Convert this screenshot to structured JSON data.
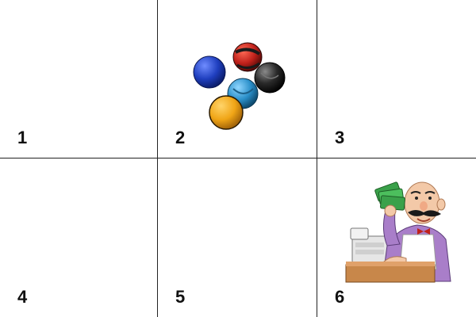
{
  "panels": [
    {
      "label": "1",
      "content": ""
    },
    {
      "label": "2",
      "content": "balls-icon"
    },
    {
      "label": "3",
      "content": ""
    },
    {
      "label": "4",
      "content": ""
    },
    {
      "label": "5",
      "content": ""
    },
    {
      "label": "6",
      "content": "cashier-icon"
    }
  ],
  "colors": {
    "border": "#222222",
    "ball_blue": "#1f3fbf",
    "ball_red": "#c0211b",
    "ball_black": "#2a2a2a",
    "ball_teal": "#2a8fc9",
    "ball_orange": "#f0a516",
    "shirt": "#a97ec9",
    "money": "#3aa14a",
    "counter": "#c8874a"
  }
}
